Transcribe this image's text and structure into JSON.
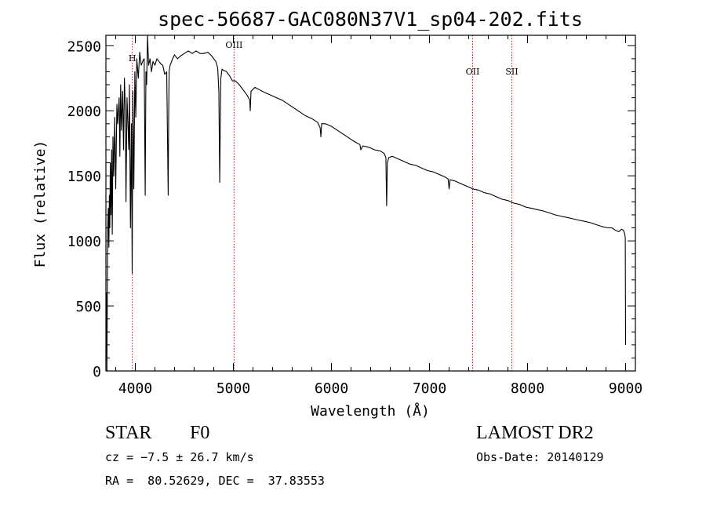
{
  "chart_data": {
    "type": "line",
    "title": "spec-56687-GAC080N37V1_sp04-202.fits",
    "xlabel": "Wavelength (Å)",
    "ylabel": "Flux (relative)",
    "xlim": [
      3700,
      9100
    ],
    "ylim": [
      0,
      2580
    ],
    "xticks": [
      4000,
      5000,
      6000,
      7000,
      8000,
      9000
    ],
    "yticks": [
      0,
      500,
      1000,
      1500,
      2000,
      2500
    ],
    "grid": false,
    "line_color": "#000000",
    "marker_color": "#a0262a",
    "lines_marked": [
      {
        "label": "H",
        "wavelength": 3969
      },
      {
        "label": "OIII",
        "wavelength": 5007
      },
      {
        "label": "OII",
        "wavelength": 7440
      },
      {
        "label": "SII",
        "wavelength": 7840
      }
    ],
    "series": [
      {
        "x": [
          3705,
          3710,
          3718,
          3725,
          3730,
          3735,
          3740,
          3745,
          3752,
          3758,
          3765,
          3772,
          3780,
          3790,
          3800,
          3812,
          3820,
          3835,
          3842,
          3850,
          3858,
          3870,
          3880,
          3889,
          3898,
          3905,
          3915,
          3925,
          3933,
          3940,
          3950,
          3960,
          3968,
          3975,
          3985,
          3995,
          4005,
          4015,
          4030,
          4045,
          4060,
          4075,
          4090,
          4101,
          4108,
          4115,
          4125,
          4135,
          4150,
          4165,
          4180,
          4200,
          4220,
          4240,
          4260,
          4280,
          4300,
          4320,
          4335,
          4340,
          4345,
          4355,
          4380,
          4400,
          4430,
          4460,
          4500,
          4540,
          4580,
          4620,
          4660,
          4700,
          4740,
          4780,
          4800,
          4820,
          4840,
          4852,
          4861,
          4866,
          4872,
          4885,
          4900,
          4930,
          4960,
          4990,
          5020,
          5060,
          5100,
          5140,
          5167,
          5172,
          5180,
          5220,
          5270,
          5320,
          5380,
          5440,
          5500,
          5560,
          5620,
          5680,
          5740,
          5800,
          5860,
          5885,
          5893,
          5900,
          5940,
          6000,
          6060,
          6120,
          6180,
          6240,
          6290,
          6300,
          6320,
          6380,
          6440,
          6500,
          6540,
          6555,
          6563,
          6570,
          6585,
          6620,
          6680,
          6740,
          6800,
          6860,
          6920,
          6980,
          7040,
          7100,
          7160,
          7190,
          7200,
          7210,
          7260,
          7320,
          7380,
          7440,
          7500,
          7560,
          7620,
          7680,
          7740,
          7800,
          7860,
          7920,
          7980,
          8040,
          8100,
          8160,
          8220,
          8280,
          8340,
          8400,
          8460,
          8520,
          8580,
          8640,
          8700,
          8760,
          8820,
          8860,
          8900,
          8930,
          8960,
          8980,
          8992,
          8997,
          9000
        ],
        "y": [
          600,
          0,
          1100,
          1250,
          950,
          1350,
          1100,
          1600,
          1200,
          1700,
          1050,
          1800,
          1500,
          1950,
          1400,
          2050,
          1900,
          2100,
          1650,
          2200,
          1850,
          2150,
          1700,
          2250,
          2000,
          1300,
          2100,
          1900,
          1700,
          2200,
          1100,
          1900,
          750,
          2150,
          1400,
          2300,
          1950,
          2400,
          2250,
          2450,
          2350,
          2380,
          2400,
          1350,
          2300,
          2200,
          2580,
          2350,
          2400,
          2300,
          2380,
          2350,
          2400,
          2380,
          2360,
          2350,
          2280,
          2300,
          1350,
          1950,
          2300,
          2350,
          2400,
          2430,
          2400,
          2420,
          2440,
          2460,
          2440,
          2460,
          2440,
          2440,
          2450,
          2420,
          2400,
          2380,
          2330,
          2150,
          1450,
          1900,
          2250,
          2320,
          2310,
          2300,
          2270,
          2230,
          2230,
          2200,
          2160,
          2120,
          2080,
          2000,
          2150,
          2180,
          2160,
          2140,
          2120,
          2100,
          2080,
          2050,
          2020,
          1990,
          1960,
          1940,
          1910,
          1870,
          1800,
          1900,
          1900,
          1880,
          1850,
          1820,
          1790,
          1760,
          1740,
          1700,
          1730,
          1720,
          1700,
          1690,
          1670,
          1640,
          1270,
          1600,
          1640,
          1650,
          1630,
          1610,
          1590,
          1580,
          1560,
          1540,
          1530,
          1510,
          1490,
          1475,
          1400,
          1470,
          1460,
          1440,
          1420,
          1400,
          1390,
          1370,
          1360,
          1340,
          1320,
          1310,
          1290,
          1280,
          1260,
          1250,
          1240,
          1230,
          1215,
          1200,
          1190,
          1180,
          1170,
          1160,
          1150,
          1140,
          1125,
          1110,
          1100,
          1100,
          1080,
          1070,
          1090,
          1080,
          1050,
          1020,
          200
        ]
      }
    ]
  },
  "footer": {
    "object_class": "STAR",
    "subclass": "F0",
    "survey": "LAMOST DR2",
    "cz": "cz = −7.5 ± 26.7 km/s",
    "obs_date": "Obs-Date: 20140129",
    "coords": "RA =  80.52629, DEC =  37.83553"
  }
}
